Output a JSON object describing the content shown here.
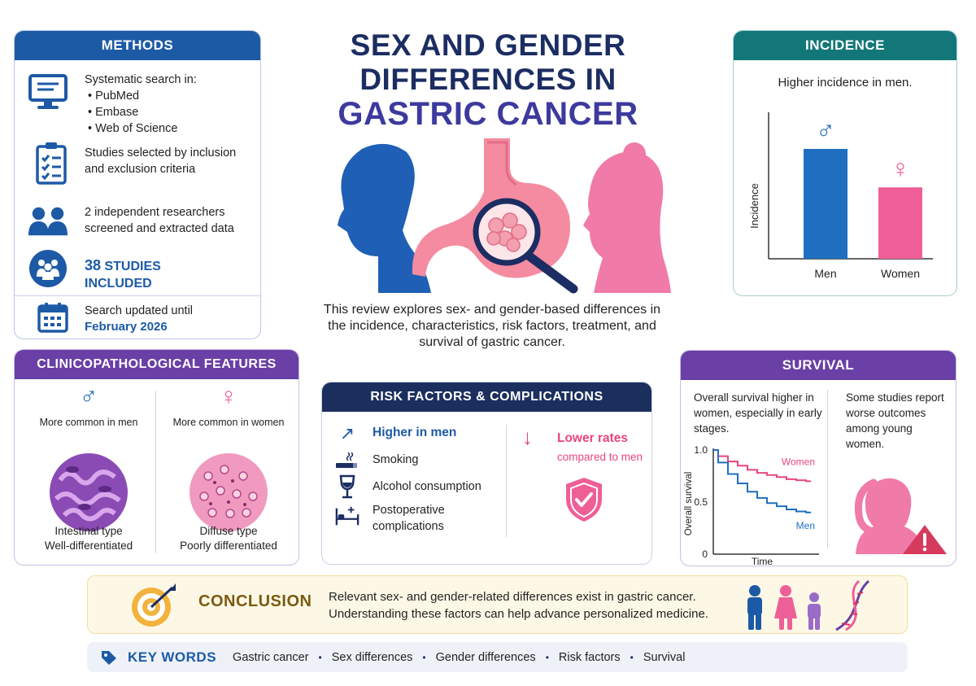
{
  "title": {
    "line1": "SEX AND GENDER",
    "line2": "DIFFERENCES IN",
    "line3": "GASTRIC CANCER"
  },
  "intro": "This review explores sex- and gender-based differences in the incidence, characteristics, risk factors, treatment, and survival of gastric cancer.",
  "methods": {
    "heading": "METHODS",
    "search_label": "Systematic search in:",
    "databases": [
      "PubMed",
      "Embase",
      "Web of Science"
    ],
    "selection": "Studies selected by inclusion and exclusion criteria",
    "researchers": "2 independent researchers screened and extracted data",
    "studies_count": "38",
    "studies_word": "STUDIES",
    "studies_included": "INCLUDED",
    "updated_label": "Search updated until",
    "updated_date": "February 2026"
  },
  "incidence": {
    "heading": "INCIDENCE",
    "description": "Higher incidence in men.",
    "chart_data": {
      "type": "bar",
      "categories": [
        "Men",
        "Women"
      ],
      "values": [
        1.0,
        0.65
      ],
      "ylabel": "Incidence",
      "colors": [
        "#1f6fc0",
        "#ef5f97"
      ]
    }
  },
  "clinico": {
    "heading": "CLINICOPATHOLOGICAL FEATURES",
    "men": {
      "common": "More common in men",
      "type": "Intestinal type",
      "grade": "Well-differentiated"
    },
    "women": {
      "common": "More common in women",
      "type": "Diffuse type",
      "grade": "Poorly differentiated"
    }
  },
  "risk": {
    "heading": "RISK FACTORS & COMPLICATIONS",
    "higher_label": "Higher in men",
    "items": [
      "Smoking",
      "Alcohol consumption",
      "Postoperative complications"
    ],
    "lower_label": "Lower rates",
    "lower_sub": "compared to men"
  },
  "survival": {
    "heading": "SURVIVAL",
    "left_text": "Overall survival higher in women, especially in early stages.",
    "right_text": "Some studies report worse outcomes among young women.",
    "chart_data": {
      "type": "line",
      "xlabel": "Time",
      "ylabel": "Overall survival",
      "y_ticks": [
        "1.0",
        "0.5",
        "0"
      ],
      "ylim": [
        0,
        1
      ],
      "series": [
        {
          "name": "Women",
          "x": [
            0,
            1,
            2,
            3,
            4,
            5,
            6,
            7,
            8,
            9,
            10
          ],
          "values": [
            1.0,
            0.94,
            0.89,
            0.85,
            0.81,
            0.78,
            0.76,
            0.74,
            0.72,
            0.71,
            0.7
          ],
          "color": "#e9457c"
        },
        {
          "name": "Men",
          "x": [
            0,
            1,
            2,
            3,
            4,
            5,
            6,
            7,
            8,
            9,
            10
          ],
          "values": [
            1.0,
            0.88,
            0.77,
            0.68,
            0.6,
            0.54,
            0.49,
            0.46,
            0.43,
            0.41,
            0.4
          ],
          "color": "#1f6fc0"
        }
      ]
    }
  },
  "conclusion": {
    "label": "CONCLUSION",
    "line1": "Relevant sex- and gender-related differences exist in gastric cancer.",
    "line2": "Understanding these factors can help advance personalized medicine."
  },
  "keywords": {
    "label": "KEY WORDS",
    "items": [
      "Gastric cancer",
      "Sex differences",
      "Gender differences",
      "Risk factors",
      "Survival"
    ]
  },
  "colors": {
    "blue": "#1d5aa6",
    "navy": "#1b2d62",
    "teal": "#13777a",
    "purple": "#6a3fa6",
    "pink": "#e9457c"
  }
}
